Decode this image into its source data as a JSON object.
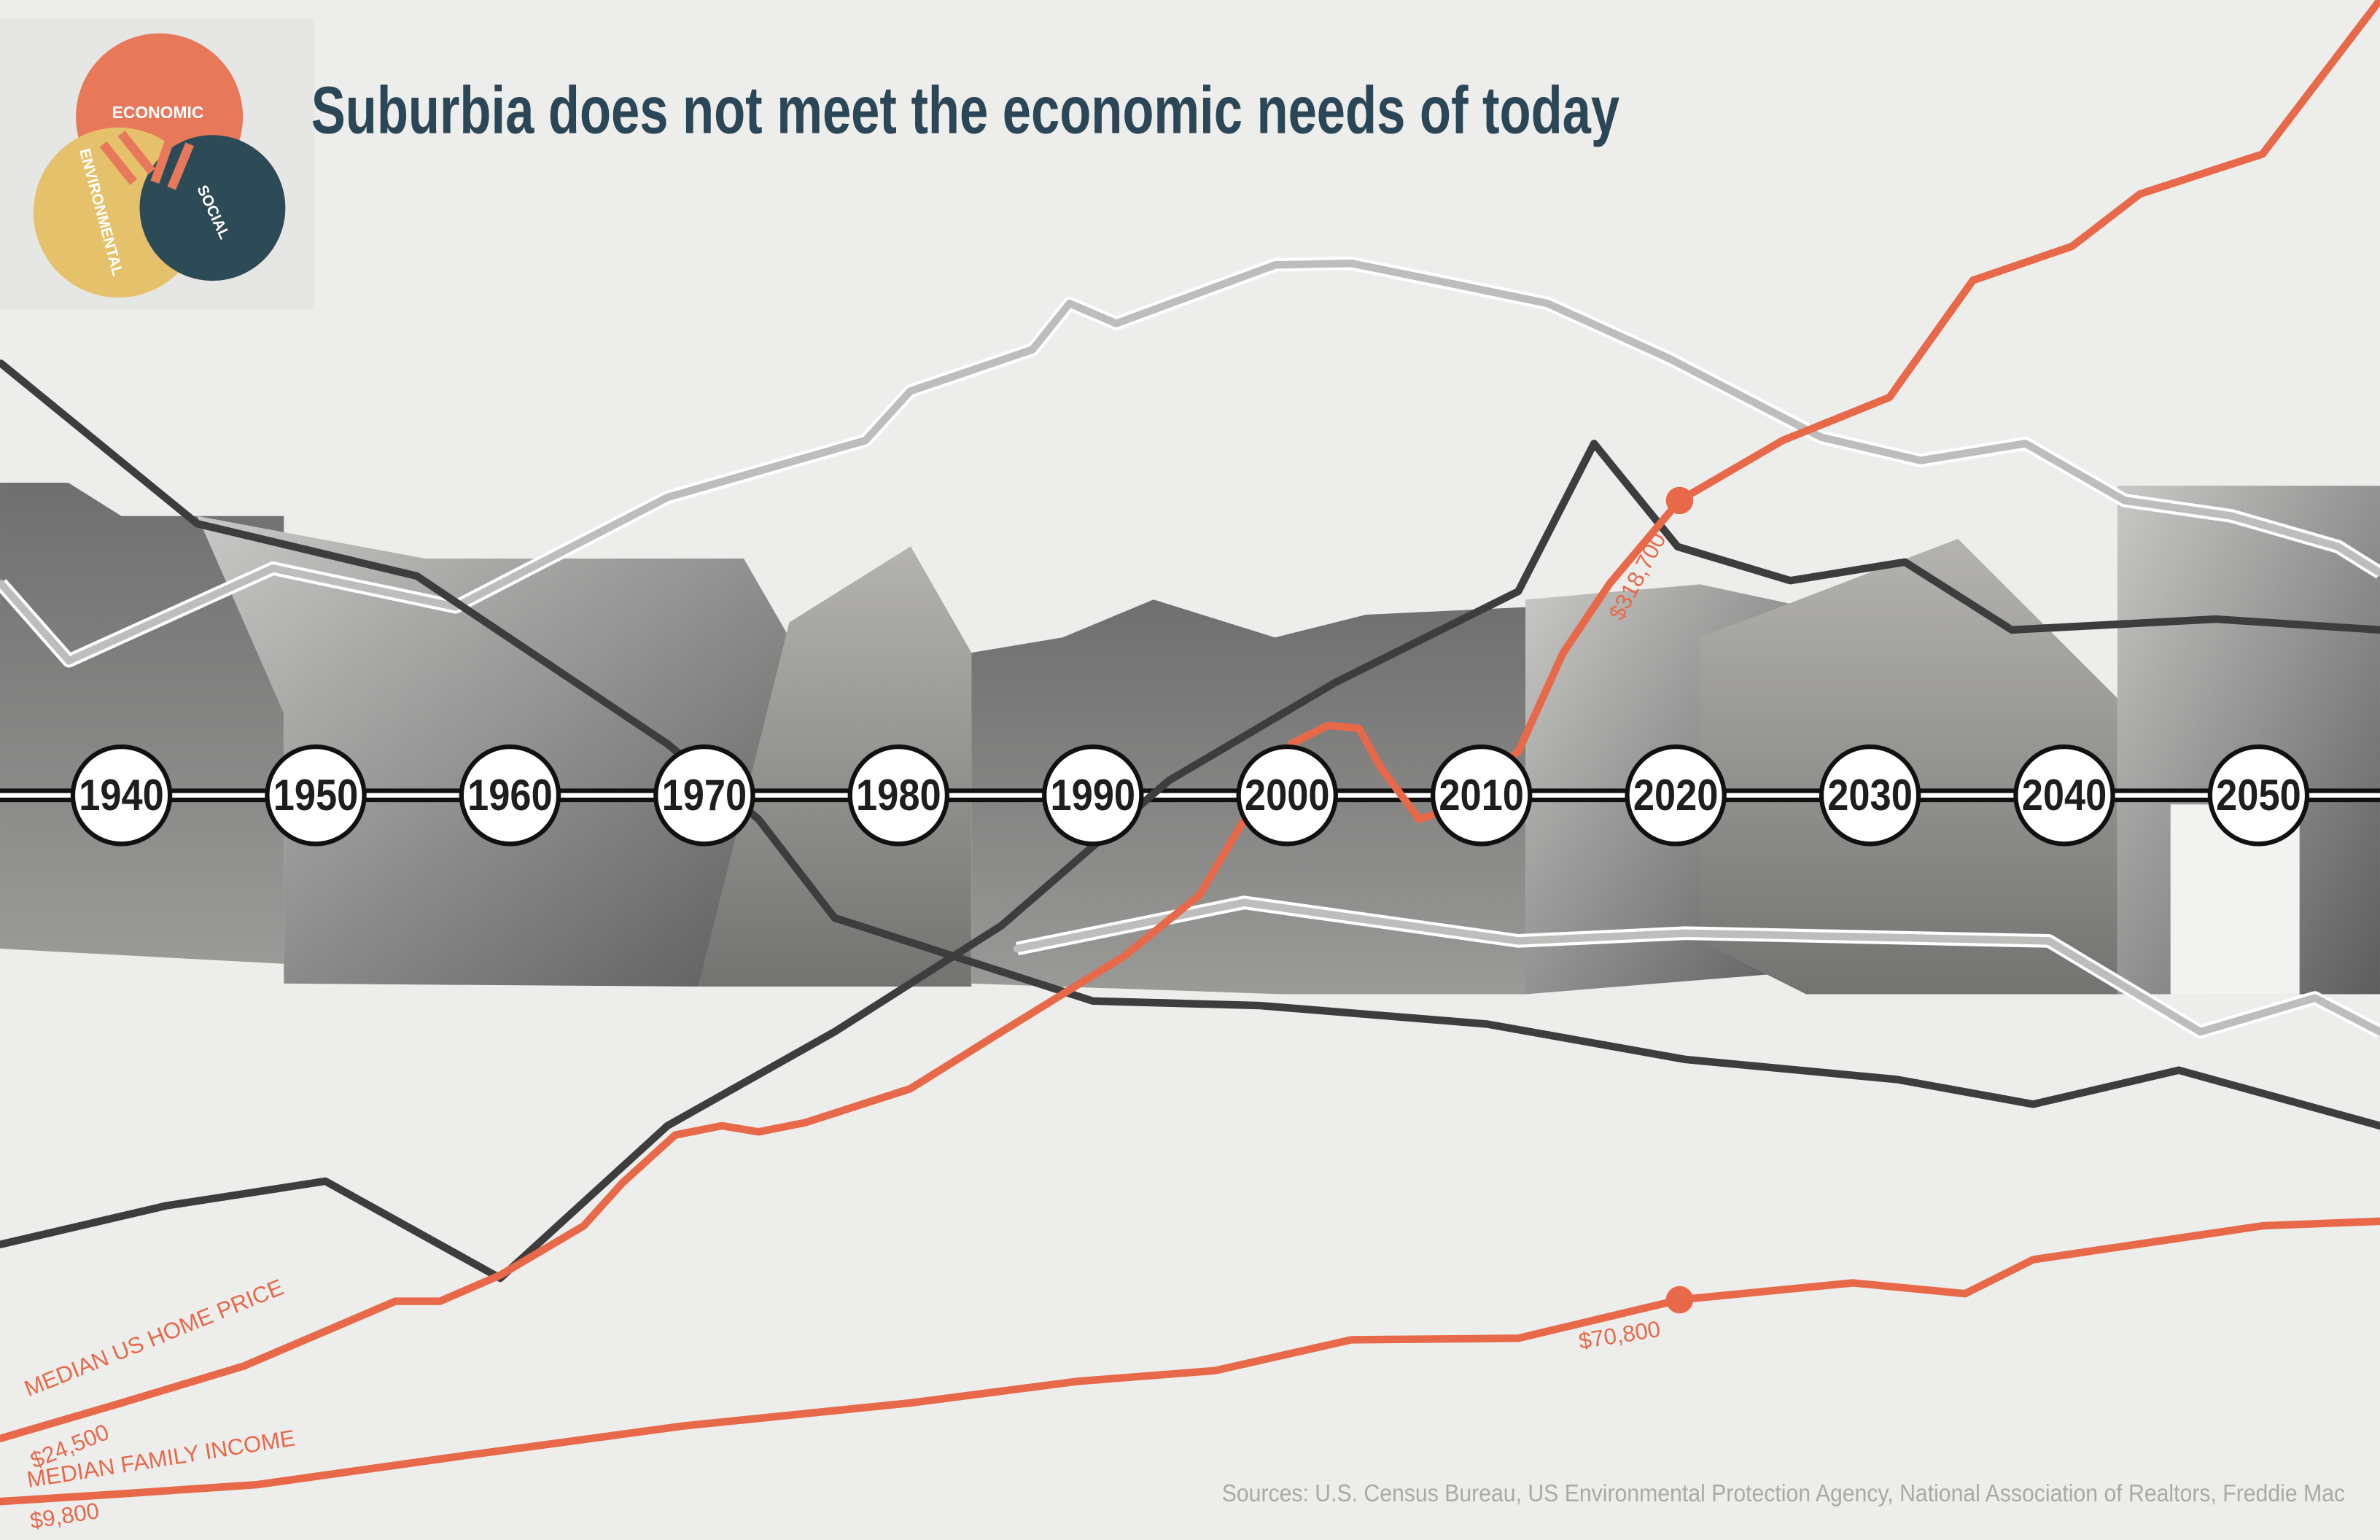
{
  "logo": {
    "labels": [
      "ECONOMIC",
      "SOCIAL",
      "ENVIRONMENTAL"
    ]
  },
  "chart_data": {
    "type": "line",
    "title": "Suburbia does not meet the economic needs of today",
    "source": "Sources: U.S. Census Bureau, US Environmental Protection Agency, National Association of Realtors, Freddie Mac",
    "xlim": [
      1933.75,
      2056.25
    ],
    "ylim": [
      0,
      100
    ],
    "xticks": [
      1940,
      1950,
      1960,
      1970,
      1980,
      1990,
      2000,
      2010,
      2020,
      2030,
      2040,
      2050
    ],
    "series": [
      {
        "color": "#bdbdbb",
        "outline": "#ffffff",
        "x": [
          1933.8,
          1937.3,
          1947.8,
          1957.2,
          1968.1,
          1978.3,
          1980.6,
          1986.9,
          1988.8,
          1991.2,
          1999.4,
          2003.3,
          2008.8,
          2013.4,
          2019.7,
          2027.5,
          2032.6,
          2038.0,
          2043.1,
          2048.6,
          2054.1,
          2056.25
        ],
        "values": [
          62.1,
          57.1,
          63.1,
          60.6,
          67.7,
          71.4,
          74.6,
          77.3,
          80.3,
          79.0,
          82.8,
          82.9,
          81.5,
          80.3,
          76.7,
          71.6,
          70.1,
          71.2,
          67.5,
          66.5,
          64.5,
          62.8
        ]
      },
      {
        "color": "#bdbdbb",
        "outline": "#ffffff",
        "x": [
          1986.1,
          1997.8,
          2011.9,
          2020.5,
          2039.2,
          2047.0,
          2052.9,
          2056.25
        ],
        "values": [
          38.4,
          41.4,
          38.9,
          39.4,
          38.9,
          33.0,
          35.2,
          33.0
        ]
      },
      {
        "color": "#3d3d3d",
        "x": [
          1933.8,
          1943.9,
          1955.2,
          1968.1,
          1972.8,
          1976.7,
          1990.0,
          1998.6,
          2010.3,
          2020.5,
          2031.4,
          2038.4,
          2045.9,
          2056.25
        ],
        "values": [
          76.4,
          66.0,
          62.6,
          51.7,
          46.8,
          40.4,
          35.0,
          34.7,
          33.5,
          31.2,
          29.9,
          28.3,
          30.5,
          26.9
        ]
      },
      {
        "color": "#3d3d3d",
        "x": [
          1933.8,
          1942.3,
          1950.5,
          1959.5,
          1968.1,
          1976.7,
          1985.3,
          1993.9,
          2002.5,
          2011.9,
          2015.8,
          2020.1,
          2025.9,
          2031.8,
          2037.3,
          2047.8,
          2056.25
        ],
        "values": [
          19.2,
          21.7,
          23.3,
          17.0,
          26.9,
          33.0,
          39.9,
          49.3,
          55.7,
          61.6,
          71.2,
          64.5,
          62.3,
          63.5,
          59.1,
          59.8,
          59.1
        ]
      },
      {
        "name": "MEDIAN US HOME PRICE",
        "color": "#e8694a",
        "x": [
          1933.8,
          1940.0,
          1946.3,
          1954.1,
          1956.4,
          1959.5,
          1963.8,
          1965.8,
          1968.5,
          1970.9,
          1972.8,
          1975.2,
          1980.6,
          1985.3,
          1991.6,
          1995.5,
          1997.8,
          2000.2,
          2002.1,
          2003.7,
          2004.8,
          2006.8,
          2008.0,
          2011.9,
          2014.2,
          2016.6,
          2020.2,
          2025.5,
          2031.0,
          2035.3,
          2040.4,
          2043.9,
          2050.2,
          2056.25
        ],
        "values": [
          6.6,
          8.9,
          11.3,
          15.5,
          15.5,
          17.2,
          20.4,
          23.2,
          26.3,
          26.9,
          26.5,
          27.1,
          29.3,
          33.0,
          37.9,
          41.9,
          46.8,
          51.7,
          52.9,
          52.7,
          50.2,
          46.8,
          47.3,
          51.2,
          57.6,
          62.1,
          67.5,
          71.4,
          74.2,
          81.8,
          84.0,
          87.4,
          90.0,
          100
        ],
        "annotations": [
          {
            "x": 1933.8,
            "text": "$24,500"
          },
          {
            "x": 2020.2,
            "text": "$318,700",
            "dot": true
          }
        ]
      },
      {
        "name": "MEDIAN FAMILY INCOME",
        "color": "#e8694a",
        "x": [
          1933.8,
          1940.0,
          1947.0,
          1957.2,
          1968.9,
          1980.6,
          1989.2,
          1996.3,
          2003.3,
          2011.9,
          2020.2,
          2029.1,
          2034.9,
          2038.4,
          2050.2,
          2056.25
        ],
        "values": [
          2.5,
          3.0,
          3.6,
          5.4,
          7.4,
          8.9,
          10.3,
          11.0,
          13.0,
          13.1,
          15.6,
          16.7,
          16.0,
          18.2,
          20.4,
          20.7
        ],
        "annotations": [
          {
            "x": 1933.8,
            "text": "$9,800"
          },
          {
            "x": 2020.2,
            "text": "$70,800",
            "dot": true
          }
        ]
      }
    ]
  }
}
